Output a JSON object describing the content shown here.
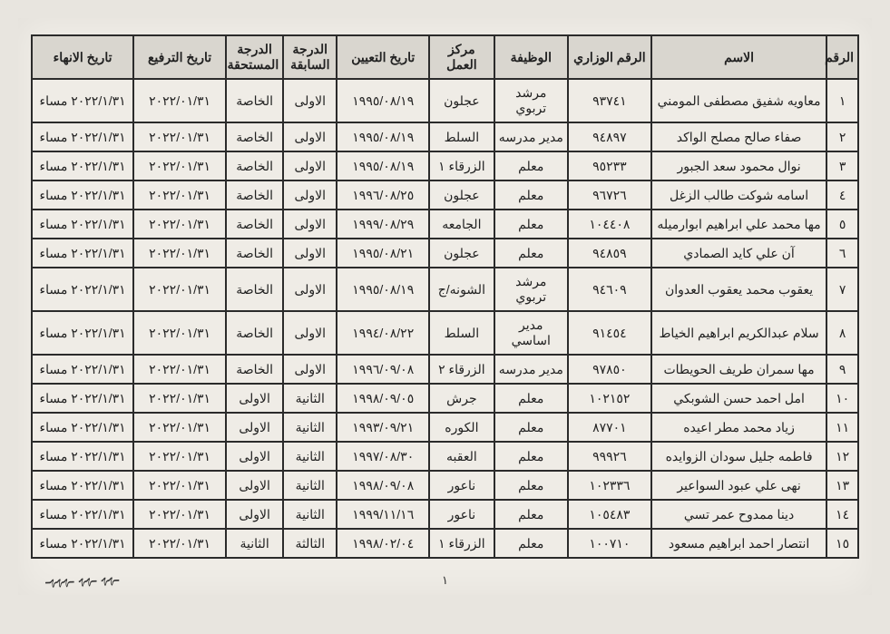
{
  "headers": {
    "num": "الرقم",
    "name": "الاسم",
    "ministerial": "الرقم الوزاري",
    "job": "الوظيفة",
    "workcenter": "مركز العمل",
    "appointdate": "تاريخ التعيين",
    "prevdeg": "الدرجة السابقة",
    "duedeg": "الدرجة المستحقة",
    "promdate": "تاريخ الترفيع",
    "enddate": "تاريخ الانهاء"
  },
  "rows": [
    {
      "n": "١",
      "name": "معاويه شفيق مصطفى المومني",
      "min": "٩٣٧٤١",
      "job": "مرشد تربوي",
      "wc": "عجلون",
      "ad": "١٩٩٥/٠٨/١٩",
      "pd": "الاولى",
      "dd": "الخاصة",
      "prom": "٢٠٢٢/٠١/٣١",
      "end": "٢٠٢٢/١/٣١ مساء"
    },
    {
      "n": "٢",
      "name": "صفاء صالح مصلح الواكد",
      "min": "٩٤٨٩٧",
      "job": "مدير مدرسه",
      "wc": "السلط",
      "ad": "١٩٩٥/٠٨/١٩",
      "pd": "الاولى",
      "dd": "الخاصة",
      "prom": "٢٠٢٢/٠١/٣١",
      "end": "٢٠٢٢/١/٣١ مساء"
    },
    {
      "n": "٣",
      "name": "نوال محمود سعد الجبور",
      "min": "٩٥٢٣٣",
      "job": "معلم",
      "wc": "الزرقاء ١",
      "ad": "١٩٩٥/٠٨/١٩",
      "pd": "الاولى",
      "dd": "الخاصة",
      "prom": "٢٠٢٢/٠١/٣١",
      "end": "٢٠٢٢/١/٣١ مساء"
    },
    {
      "n": "٤",
      "name": "اسامه شوكت طالب الزغل",
      "min": "٩٦٧٢٦",
      "job": "معلم",
      "wc": "عجلون",
      "ad": "١٩٩٦/٠٨/٢٥",
      "pd": "الاولى",
      "dd": "الخاصة",
      "prom": "٢٠٢٢/٠١/٣١",
      "end": "٢٠٢٢/١/٣١ مساء"
    },
    {
      "n": "٥",
      "name": "مها محمد علي ابراهيم ابوارميله",
      "min": "١٠٤٤٠٨",
      "job": "معلم",
      "wc": "الجامعه",
      "ad": "١٩٩٩/٠٨/٢٩",
      "pd": "الاولى",
      "dd": "الخاصة",
      "prom": "٢٠٢٢/٠١/٣١",
      "end": "٢٠٢٢/١/٣١ مساء"
    },
    {
      "n": "٦",
      "name": "آن علي كايد الصمادي",
      "min": "٩٤٨٥٩",
      "job": "معلم",
      "wc": "عجلون",
      "ad": "١٩٩٥/٠٨/٢١",
      "pd": "الاولى",
      "dd": "الخاصة",
      "prom": "٢٠٢٢/٠١/٣١",
      "end": "٢٠٢٢/١/٣١ مساء"
    },
    {
      "n": "٧",
      "name": "يعقوب محمد يعقوب العدوان",
      "min": "٩٤٦٠٩",
      "job": "مرشد تربوي",
      "wc": "الشونه/ج",
      "ad": "١٩٩٥/٠٨/١٩",
      "pd": "الاولى",
      "dd": "الخاصة",
      "prom": "٢٠٢٢/٠١/٣١",
      "end": "٢٠٢٢/١/٣١ مساء"
    },
    {
      "n": "٨",
      "name": "سلام عبدالكريم ابراهيم الخياط",
      "min": "٩١٤٥٤",
      "job": "مدير اساسي",
      "wc": "السلط",
      "ad": "١٩٩٤/٠٨/٢٢",
      "pd": "الاولى",
      "dd": "الخاصة",
      "prom": "٢٠٢٢/٠١/٣١",
      "end": "٢٠٢٢/١/٣١ مساء"
    },
    {
      "n": "٩",
      "name": "مها سمران طريف الحويطات",
      "min": "٩٧٨٥٠",
      "job": "مدير مدرسه",
      "wc": "الزرقاء ٢",
      "ad": "١٩٩٦/٠٩/٠٨",
      "pd": "الاولى",
      "dd": "الخاصة",
      "prom": "٢٠٢٢/٠١/٣١",
      "end": "٢٠٢٢/١/٣١ مساء"
    },
    {
      "n": "١٠",
      "name": "امل احمد حسن الشوبكي",
      "min": "١٠٢١٥٢",
      "job": "معلم",
      "wc": "جرش",
      "ad": "١٩٩٨/٠٩/٠٥",
      "pd": "الثانية",
      "dd": "الاولى",
      "prom": "٢٠٢٢/٠١/٣١",
      "end": "٢٠٢٢/١/٣١ مساء"
    },
    {
      "n": "١١",
      "name": "زياد محمد مطر اعيده",
      "min": "٨٧٧٠١",
      "job": "معلم",
      "wc": "الكوره",
      "ad": "١٩٩٣/٠٩/٢١",
      "pd": "الثانية",
      "dd": "الاولى",
      "prom": "٢٠٢٢/٠١/٣١",
      "end": "٢٠٢٢/١/٣١ مساء"
    },
    {
      "n": "١٢",
      "name": "فاطمه جليل سودان الزوايده",
      "min": "٩٩٩٢٦",
      "job": "معلم",
      "wc": "العقبه",
      "ad": "١٩٩٧/٠٨/٣٠",
      "pd": "الثانية",
      "dd": "الاولى",
      "prom": "٢٠٢٢/٠١/٣١",
      "end": "٢٠٢٢/١/٣١ مساء"
    },
    {
      "n": "١٣",
      "name": "نهى علي عبود السواعير",
      "min": "١٠٢٣٣٦",
      "job": "معلم",
      "wc": "ناعور",
      "ad": "١٩٩٨/٠٩/٠٨",
      "pd": "الثانية",
      "dd": "الاولى",
      "prom": "٢٠٢٢/٠١/٣١",
      "end": "٢٠٢٢/١/٣١ مساء"
    },
    {
      "n": "١٤",
      "name": "دينا ممدوح عمر تسي",
      "min": "١٠٥٤٨٣",
      "job": "معلم",
      "wc": "ناعور",
      "ad": "١٩٩٩/١١/١٦",
      "pd": "الثانية",
      "dd": "الاولى",
      "prom": "٢٠٢٢/٠١/٣١",
      "end": "٢٠٢٢/١/٣١ مساء"
    },
    {
      "n": "١٥",
      "name": "انتصار احمد ابراهيم مسعود",
      "min": "١٠٠٧١٠",
      "job": "معلم",
      "wc": "الزرقاء ١",
      "ad": "١٩٩٨/٠٢/٠٤",
      "pd": "الثالثة",
      "dd": "الثانية",
      "prom": "٢٠٢٢/٠١/٣١",
      "end": "٢٠٢٢/١/٣١ مساء"
    }
  ],
  "footer": {
    "pagenum": "١"
  }
}
